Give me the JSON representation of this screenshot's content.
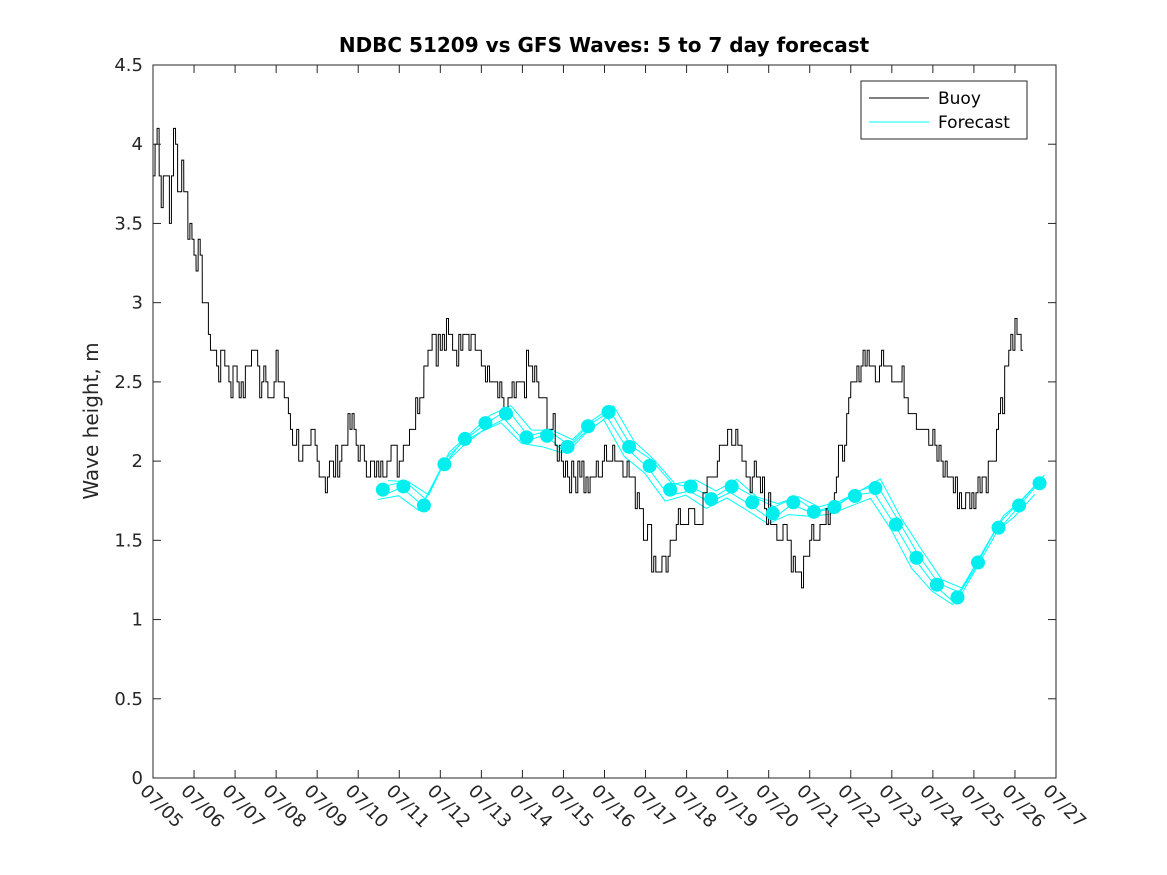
{
  "chart_data": {
    "type": "line",
    "title": "NDBC 51209 vs GFS Waves: 5 to 7 day forecast",
    "ylabel": "Wave height, m",
    "xlabel": "",
    "ylim": [
      0,
      4.5
    ],
    "yticks": [
      "0",
      "0.5",
      "1",
      "1.5",
      "2",
      "2.5",
      "3",
      "3.5",
      "4",
      "4.5"
    ],
    "xlim_days": [
      0,
      22
    ],
    "xticks": [
      "07/05",
      "07/06",
      "07/07",
      "07/08",
      "07/09",
      "07/10",
      "07/11",
      "07/12",
      "07/13",
      "07/14",
      "07/15",
      "07/16",
      "07/17",
      "07/18",
      "07/19",
      "07/20",
      "07/21",
      "07/22",
      "07/23",
      "07/24",
      "07/25",
      "07/26",
      "07/27"
    ],
    "legend": {
      "placement": "top-right",
      "entries": [
        "Buoy",
        "Forecast"
      ]
    },
    "colors": {
      "buoy": "#000000",
      "forecast": "#00ffff",
      "markers": "#00eeee"
    },
    "series": [
      {
        "name": "Buoy",
        "x": [
          0,
          0.1,
          0.2,
          0.3,
          0.4,
          0.5,
          0.6,
          0.7,
          0.85,
          1.0,
          1.15,
          1.3,
          1.45,
          1.6,
          1.75,
          1.9,
          2.0,
          2.15,
          2.3,
          2.45,
          2.6,
          2.75,
          2.9,
          3.0,
          3.15,
          3.3,
          3.5,
          3.7,
          3.9,
          4.0,
          4.2,
          4.4,
          4.6,
          4.8,
          5.0,
          5.2,
          5.4,
          5.6,
          5.8,
          6.0,
          6.2,
          6.4,
          6.6,
          6.8,
          7.0,
          7.2,
          7.4,
          7.6,
          7.8,
          8.0,
          8.2,
          8.4,
          8.6,
          8.8,
          9.0,
          9.2,
          9.4,
          9.6,
          9.8,
          10.0,
          10.2,
          10.4,
          10.6,
          10.8,
          11.0,
          11.2,
          11.4,
          11.6,
          11.8,
          12.0,
          12.2,
          12.4,
          12.6,
          12.8,
          13.0,
          13.2,
          13.4,
          13.6,
          13.8,
          14.0,
          14.2,
          14.4,
          14.6,
          14.8,
          15.0,
          15.2,
          15.4,
          15.6,
          15.8,
          16.0,
          16.2,
          16.4,
          16.6,
          16.8,
          17.0,
          17.2,
          17.4,
          17.6,
          17.8,
          18.0,
          18.2,
          18.4,
          18.6,
          18.8,
          19.0,
          19.2,
          19.4,
          19.6,
          19.8,
          20.0,
          20.2,
          20.4,
          20.6,
          20.8,
          21.0,
          21.2
        ],
        "values": [
          3.8,
          4.2,
          3.6,
          3.9,
          3.5,
          4.1,
          3.7,
          3.9,
          3.5,
          3.4,
          3.2,
          2.9,
          2.7,
          2.6,
          2.7,
          2.5,
          2.6,
          2.4,
          2.6,
          2.7,
          2.5,
          2.6,
          2.4,
          2.6,
          2.5,
          2.3,
          2.1,
          2.0,
          2.1,
          2.0,
          1.9,
          2.0,
          2.1,
          2.2,
          2.1,
          2.0,
          1.9,
          2.0,
          2.1,
          2.0,
          2.2,
          2.3,
          2.6,
          2.8,
          2.7,
          2.8,
          2.7,
          2.9,
          2.8,
          2.6,
          2.5,
          2.4,
          2.3,
          2.4,
          2.5,
          2.6,
          2.4,
          2.3,
          2.1,
          2.0,
          1.9,
          2.0,
          1.8,
          1.9,
          2.0,
          2.1,
          2.0,
          1.9,
          1.8,
          1.6,
          1.4,
          1.35,
          1.4,
          1.6,
          1.7,
          1.6,
          1.7,
          1.9,
          2.0,
          2.2,
          2.1,
          2.0,
          1.9,
          1.8,
          1.7,
          1.6,
          1.5,
          1.4,
          1.3,
          1.5,
          1.6,
          1.7,
          1.8,
          2.1,
          2.4,
          2.6,
          2.7,
          2.5,
          2.7,
          2.6,
          2.5,
          2.4,
          2.3,
          2.2,
          2.1,
          2.0,
          1.9,
          1.8,
          1.7,
          1.8,
          1.9,
          2.0,
          2.3,
          2.6,
          2.8,
          2.7
        ]
      },
      {
        "name": "Forecast",
        "x": [
          5.6,
          6.1,
          6.6,
          7.1,
          7.6,
          8.1,
          8.6,
          9.1,
          9.6,
          10.1,
          10.6,
          11.1,
          11.6,
          12.1,
          12.6,
          13.1,
          13.6,
          14.1,
          14.6,
          15.1,
          15.6,
          16.1,
          16.6,
          17.1,
          17.6,
          18.1,
          18.6,
          19.1,
          19.6,
          20.1,
          20.6,
          21.1,
          21.6
        ],
        "values": [
          1.82,
          1.84,
          1.72,
          1.98,
          2.14,
          2.24,
          2.3,
          2.15,
          2.16,
          2.09,
          2.22,
          2.31,
          2.09,
          1.97,
          1.82,
          1.84,
          1.76,
          1.84,
          1.74,
          1.67,
          1.74,
          1.68,
          1.71,
          1.78,
          1.83,
          1.6,
          1.39,
          1.22,
          1.14,
          1.36,
          1.58,
          1.72,
          1.86
        ]
      }
    ]
  }
}
